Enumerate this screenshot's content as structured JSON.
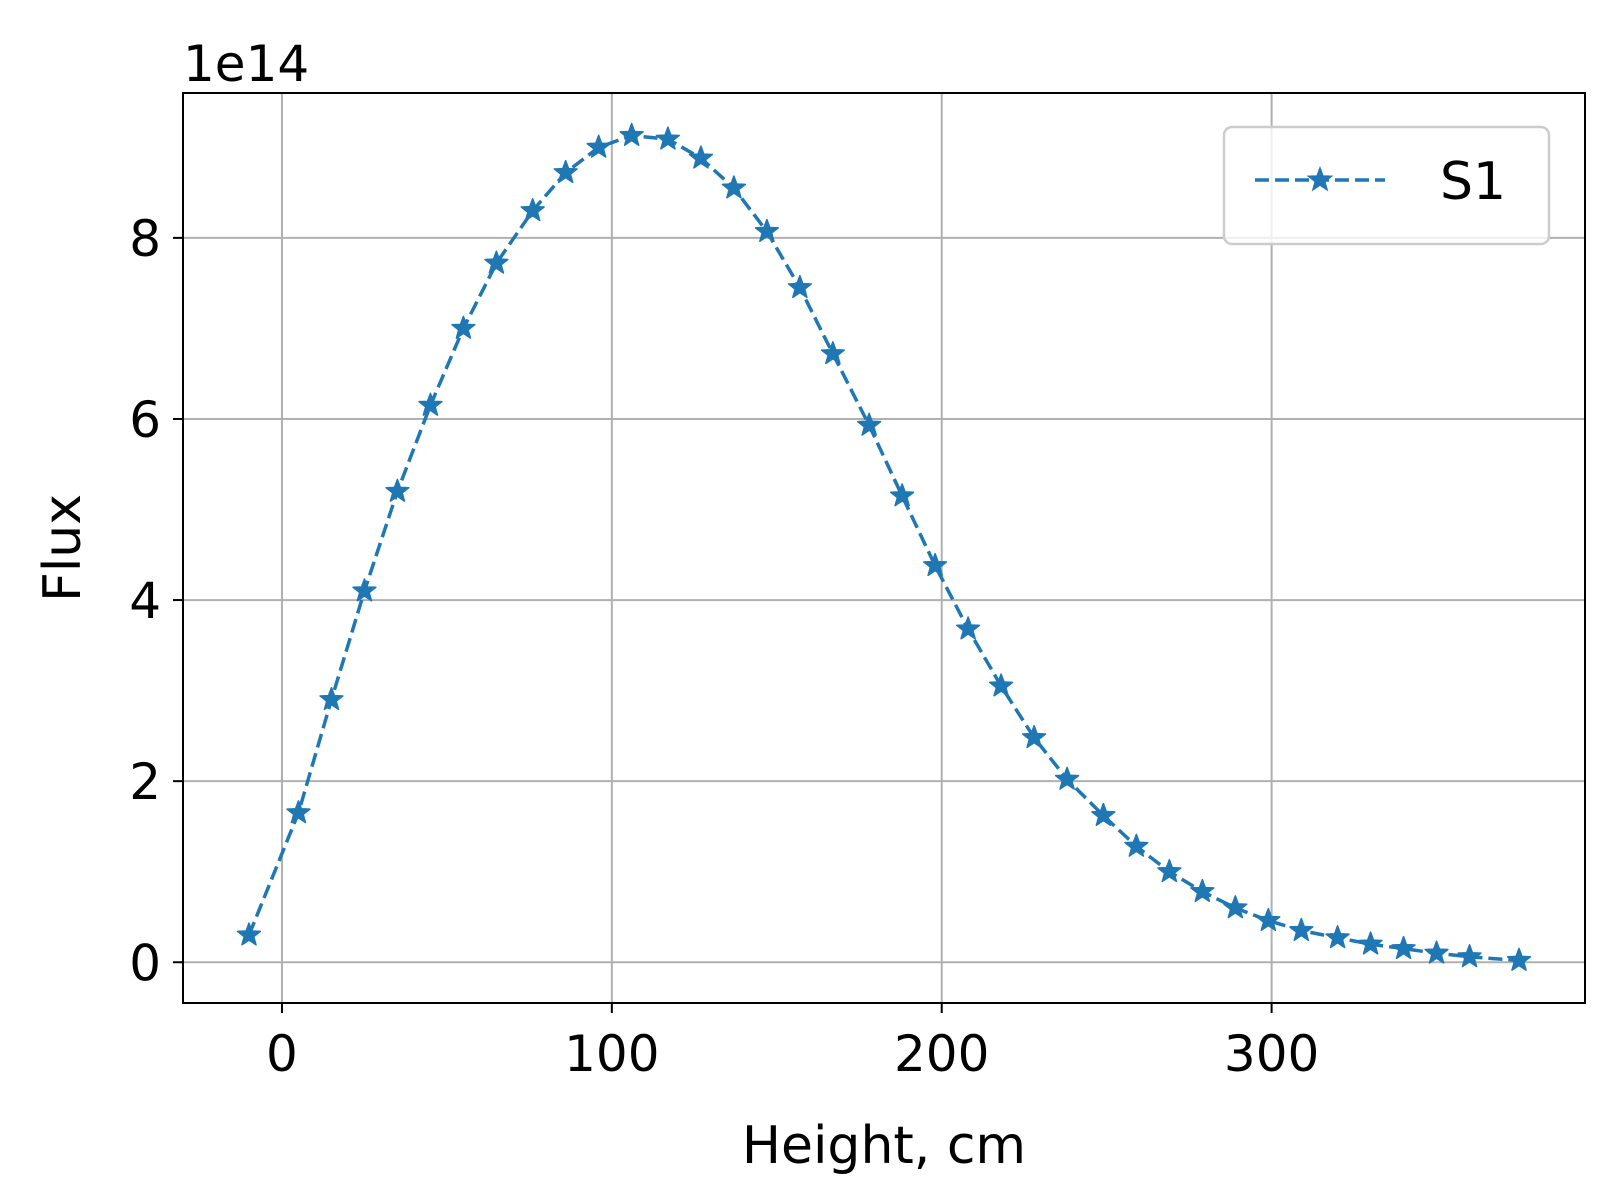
{
  "chart_data": {
    "type": "line",
    "xlabel": "Height, cm",
    "ylabel": "Flux",
    "y_offset_label": "1e14",
    "y_scale": 100000000000000.0,
    "xlim": [
      -30,
      395
    ],
    "ylim": [
      -0.45,
      9.6
    ],
    "x_ticks": [
      0,
      100,
      200,
      300
    ],
    "x_tick_labels": [
      "0",
      "100",
      "200",
      "300"
    ],
    "y_ticks": [
      0,
      2,
      4,
      6,
      8
    ],
    "y_tick_labels": [
      "0",
      "2",
      "4",
      "6",
      "8"
    ],
    "grid": true,
    "legend_position": "top-right",
    "color": "#1f77b4",
    "series": [
      {
        "name": "S1",
        "line_style": "dashed",
        "marker": "star",
        "x": [
          -10,
          5,
          15,
          25,
          35,
          45,
          55,
          65,
          76,
          86,
          96,
          106,
          117,
          127,
          137,
          147,
          157,
          167,
          178,
          188,
          198,
          208,
          218,
          228,
          238,
          249,
          259,
          269,
          279,
          289,
          299,
          309,
          320,
          330,
          340,
          350,
          360,
          375
        ],
        "y": [
          0.3,
          1.65,
          2.9,
          4.1,
          5.2,
          6.15,
          7.0,
          7.72,
          8.3,
          8.72,
          9.0,
          9.13,
          9.09,
          8.88,
          8.55,
          8.07,
          7.45,
          6.72,
          5.93,
          5.15,
          4.38,
          3.68,
          3.05,
          2.48,
          2.02,
          1.62,
          1.28,
          1.0,
          0.78,
          0.6,
          0.46,
          0.35,
          0.27,
          0.2,
          0.15,
          0.1,
          0.06,
          0.02
        ]
      }
    ]
  }
}
